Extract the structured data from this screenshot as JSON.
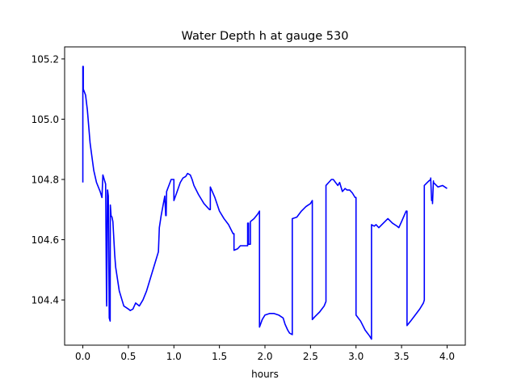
{
  "chart_data": {
    "type": "line",
    "title": "Water Depth h at gauge 530",
    "xlabel": "hours",
    "ylabel": "",
    "xlim": [
      -0.2,
      4.2
    ],
    "ylim": [
      104.25,
      105.24
    ],
    "xticks": [
      0.0,
      0.5,
      1.0,
      1.5,
      2.0,
      2.5,
      3.0,
      3.5,
      4.0
    ],
    "xtick_labels": [
      "0.0",
      "0.5",
      "1.0",
      "1.5",
      "2.0",
      "2.5",
      "3.0",
      "3.5",
      "4.0"
    ],
    "yticks": [
      104.4,
      104.6,
      104.8,
      105.0,
      105.2
    ],
    "ytick_labels": [
      "104.4",
      "104.6",
      "104.8",
      "105.0",
      "105.2"
    ],
    "grid": false,
    "legend": "none",
    "series": [
      {
        "color": "#0000ff",
        "x": [
          0.0,
          0.0,
          0.005,
          0.005,
          0.03,
          0.05,
          0.08,
          0.12,
          0.15,
          0.19,
          0.21,
          0.22,
          0.22,
          0.25,
          0.26,
          0.262,
          0.27,
          0.272,
          0.28,
          0.29,
          0.3,
          0.302,
          0.31,
          0.32,
          0.33,
          0.35,
          0.36,
          0.38,
          0.4,
          0.45,
          0.5,
          0.52,
          0.55,
          0.58,
          0.62,
          0.66,
          0.7,
          0.75,
          0.8,
          0.83,
          0.84,
          0.86,
          0.9,
          0.91,
          0.915,
          0.92,
          0.97,
          1.0,
          1.0,
          1.03,
          1.07,
          1.1,
          1.13,
          1.15,
          1.18,
          1.2,
          1.22,
          1.27,
          1.33,
          1.39,
          1.4,
          1.4,
          1.45,
          1.5,
          1.55,
          1.6,
          1.65,
          1.66,
          1.66,
          1.7,
          1.73,
          1.8,
          1.81,
          1.81,
          1.82,
          1.82,
          1.84,
          1.84,
          1.88,
          1.92,
          1.94,
          1.94,
          1.97,
          2.0,
          2.05,
          2.1,
          2.15,
          2.2,
          2.22,
          2.25,
          2.27,
          2.3,
          2.3,
          2.35,
          2.4,
          2.45,
          2.5,
          2.52,
          2.52,
          2.55,
          2.6,
          2.65,
          2.67,
          2.67,
          2.7,
          2.73,
          2.75,
          2.8,
          2.82,
          2.85,
          2.88,
          2.9,
          2.93,
          2.96,
          2.99,
          3.0,
          3.0,
          3.05,
          3.1,
          3.15,
          3.17,
          3.17,
          3.2,
          3.22,
          3.25,
          3.3,
          3.35,
          3.4,
          3.45,
          3.47,
          3.5,
          3.55,
          3.56,
          3.56,
          3.6,
          3.65,
          3.7,
          3.74,
          3.75,
          3.75,
          3.8,
          3.82,
          3.82,
          3.83,
          3.83,
          3.84,
          3.84,
          3.85,
          3.85,
          3.9,
          3.95,
          4.0
        ],
        "y": [
          104.79,
          105.175,
          105.175,
          105.1,
          105.08,
          105.03,
          104.92,
          104.83,
          104.79,
          104.76,
          104.74,
          104.815,
          104.815,
          104.785,
          104.4,
          104.38,
          104.765,
          104.765,
          104.745,
          104.34,
          104.33,
          104.715,
          104.68,
          104.675,
          104.66,
          104.55,
          104.51,
          104.47,
          104.43,
          104.38,
          104.37,
          104.365,
          104.37,
          104.39,
          104.38,
          104.4,
          104.43,
          104.48,
          104.53,
          104.56,
          104.64,
          104.68,
          104.745,
          104.68,
          104.68,
          104.76,
          104.8,
          104.8,
          104.73,
          104.755,
          104.79,
          104.805,
          104.81,
          104.82,
          104.815,
          104.8,
          104.78,
          104.75,
          104.72,
          104.7,
          104.7,
          104.775,
          104.74,
          104.695,
          104.67,
          104.65,
          104.62,
          104.62,
          104.565,
          104.57,
          104.58,
          104.58,
          104.58,
          104.655,
          104.655,
          104.585,
          104.585,
          104.66,
          104.67,
          104.685,
          104.695,
          104.31,
          104.335,
          104.35,
          104.355,
          104.355,
          104.35,
          104.34,
          104.32,
          104.3,
          104.29,
          104.285,
          104.67,
          104.675,
          104.695,
          104.71,
          104.72,
          104.73,
          104.335,
          104.345,
          104.36,
          104.38,
          104.395,
          104.78,
          104.79,
          104.8,
          104.8,
          104.78,
          104.79,
          104.76,
          104.77,
          104.765,
          104.765,
          104.755,
          104.74,
          104.74,
          104.35,
          104.33,
          104.3,
          104.28,
          104.27,
          104.65,
          104.645,
          104.65,
          104.64,
          104.655,
          104.67,
          104.655,
          104.645,
          104.64,
          104.66,
          104.695,
          104.695,
          104.315,
          104.33,
          104.35,
          104.37,
          104.39,
          104.4,
          104.78,
          104.795,
          104.8,
          104.805,
          104.73,
          104.74,
          104.73,
          104.72,
          104.795,
          104.79,
          104.775,
          104.78,
          104.77
        ]
      }
    ]
  }
}
